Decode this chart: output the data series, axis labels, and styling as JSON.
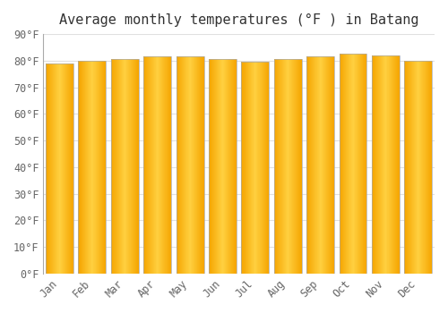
{
  "title": "Average monthly temperatures (°F ) in Batang",
  "months": [
    "Jan",
    "Feb",
    "Mar",
    "Apr",
    "May",
    "Jun",
    "Jul",
    "Aug",
    "Sep",
    "Oct",
    "Nov",
    "Dec"
  ],
  "values": [
    79,
    80,
    80.5,
    81.5,
    81.5,
    80.5,
    79.5,
    80.5,
    81.5,
    82.5,
    82,
    80
  ],
  "bar_color_center": "#FFD040",
  "bar_color_edge": "#F5A500",
  "bar_outline_color": "#AAAAAA",
  "background_color": "#FFFFFF",
  "grid_color": "#E0E0E0",
  "ylim": [
    0,
    90
  ],
  "yticks": [
    0,
    10,
    20,
    30,
    40,
    50,
    60,
    70,
    80,
    90
  ],
  "ytick_labels": [
    "0°F",
    "10°F",
    "20°F",
    "30°F",
    "40°F",
    "50°F",
    "60°F",
    "70°F",
    "80°F",
    "90°F"
  ],
  "title_fontsize": 11,
  "tick_fontsize": 8.5,
  "font_family": "monospace",
  "bar_width": 0.85
}
